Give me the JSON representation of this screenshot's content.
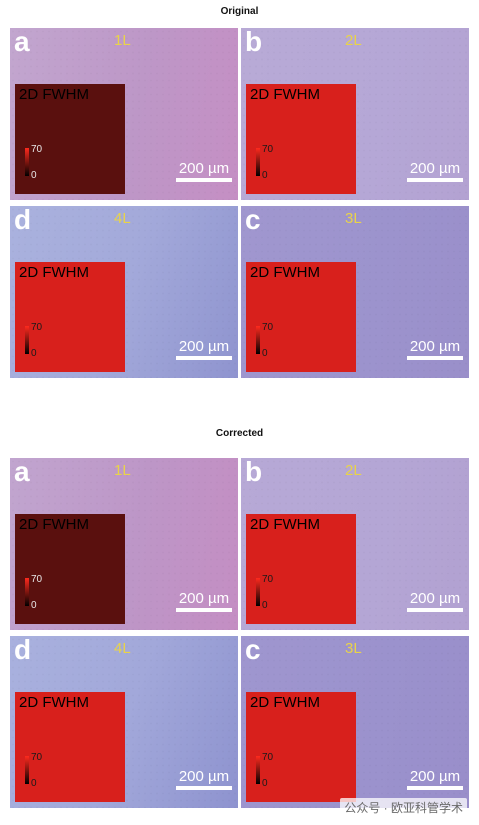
{
  "sections": [
    {
      "title": "Original",
      "panels": [
        {
          "letter": "a",
          "layer": "1L",
          "inset_title": "2D FWHM",
          "cbar_max": "70",
          "cbar_min": "0",
          "scale": "200 µm"
        },
        {
          "letter": "b",
          "layer": "2L",
          "inset_title": "2D FWHM",
          "cbar_max": "70",
          "cbar_min": "0",
          "scale": "200 µm"
        },
        {
          "letter": "d",
          "layer": "4L",
          "inset_title": "2D FWHM",
          "cbar_max": "70",
          "cbar_min": "0",
          "scale": "200 µm"
        },
        {
          "letter": "c",
          "layer": "3L",
          "inset_title": "2D FWHM",
          "cbar_max": "70",
          "cbar_min": "0",
          "scale": "200 µm"
        }
      ]
    },
    {
      "title": "Corrected",
      "panels": [
        {
          "letter": "a",
          "layer": "1L",
          "inset_title": "2D FWHM",
          "cbar_max": "70",
          "cbar_min": "0",
          "scale": "200 µm"
        },
        {
          "letter": "b",
          "layer": "2L",
          "inset_title": "2D FWHM",
          "cbar_max": "70",
          "cbar_min": "0",
          "scale": "200 µm"
        },
        {
          "letter": "d",
          "layer": "4L",
          "inset_title": "2D FWHM",
          "cbar_max": "70",
          "cbar_min": "0",
          "scale": "200 µm"
        },
        {
          "letter": "c",
          "layer": "3L",
          "inset_title": "2D FWHM",
          "cbar_max": "70",
          "cbar_min": "0",
          "scale": "200 µm"
        }
      ]
    }
  ],
  "watermark": "公众号 · 欧亚科管学术",
  "colors": {
    "label_yellow": "#e8d34a",
    "inset_red": "#d8201c",
    "inset_dark_red": "#5a100e",
    "bg_1L": "#b99ac9",
    "bg_2L": "#b4a6d4",
    "bg_3L": "#9a92cc",
    "bg_4L": "#a1a8d8"
  }
}
